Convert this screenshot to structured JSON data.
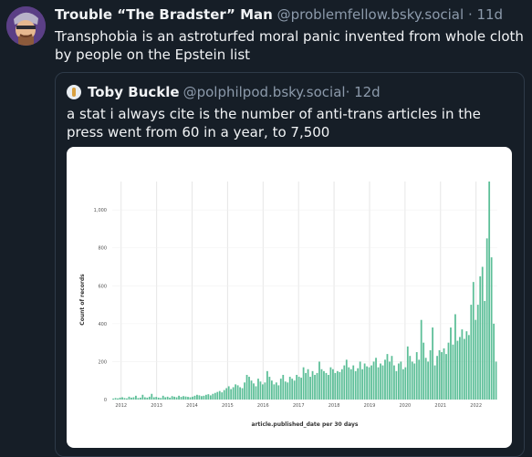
{
  "post": {
    "author_name": "Trouble “The Bradster” Man",
    "handle": "@problemfellow.bsky.social",
    "meta": "· 11d",
    "text": "Transphobia is an astroturfed moral panic invented from whole cloth by people on the Epstein list"
  },
  "quote": {
    "author_name": "Toby Buckle",
    "handle": "@polphilpod.bsky.social",
    "meta": "· 12d",
    "text": "a stat i always cite is the number of anti-trans articles in the press went from 60 in a year, to 7,500"
  },
  "colors": {
    "background": "#161e27",
    "bar": "#5dbf98"
  },
  "chart_data": {
    "type": "bar",
    "title": "",
    "xlabel": "article.published_date per 30 days",
    "ylabel": "Count of records",
    "ylim": [
      0,
      1150
    ],
    "yticks": [
      0,
      200,
      400,
      600,
      800,
      "1,000"
    ],
    "yticks_values": [
      0,
      200,
      400,
      600,
      800,
      1000
    ],
    "xticks": [
      "2012",
      "2013",
      "2014",
      "2015",
      "2016",
      "2017",
      "2018",
      "2019",
      "2020",
      "2021",
      "2022"
    ],
    "x_start": 2011.75,
    "x_end": 2022.6,
    "grid": true,
    "values": [
      5,
      8,
      6,
      10,
      12,
      8,
      6,
      15,
      10,
      12,
      20,
      8,
      10,
      25,
      12,
      10,
      15,
      30,
      12,
      14,
      10,
      8,
      20,
      12,
      15,
      10,
      18,
      15,
      12,
      20,
      14,
      18,
      16,
      14,
      12,
      15,
      20,
      25,
      22,
      18,
      20,
      25,
      28,
      22,
      30,
      35,
      40,
      45,
      38,
      50,
      60,
      70,
      55,
      65,
      80,
      75,
      65,
      60,
      90,
      130,
      120,
      100,
      85,
      70,
      110,
      95,
      80,
      90,
      150,
      120,
      100,
      80,
      90,
      75,
      110,
      130,
      95,
      90,
      120,
      110,
      100,
      130,
      120,
      115,
      170,
      140,
      160,
      120,
      150,
      130,
      140,
      200,
      160,
      150,
      140,
      130,
      170,
      160,
      140,
      150,
      145,
      160,
      180,
      210,
      170,
      160,
      180,
      150,
      165,
      200,
      160,
      190,
      175,
      170,
      180,
      200,
      220,
      170,
      190,
      180,
      210,
      240,
      200,
      230,
      180,
      150,
      190,
      200,
      160,
      170,
      280,
      230,
      200,
      190,
      250,
      210,
      420,
      300,
      220,
      200,
      260,
      380,
      180,
      230,
      260,
      250,
      270,
      240,
      300,
      380,
      290,
      450,
      310,
      330,
      370,
      320,
      360,
      340,
      500,
      620,
      420,
      500,
      650,
      700,
      520,
      850,
      1150,
      750,
      400,
      200
    ]
  }
}
